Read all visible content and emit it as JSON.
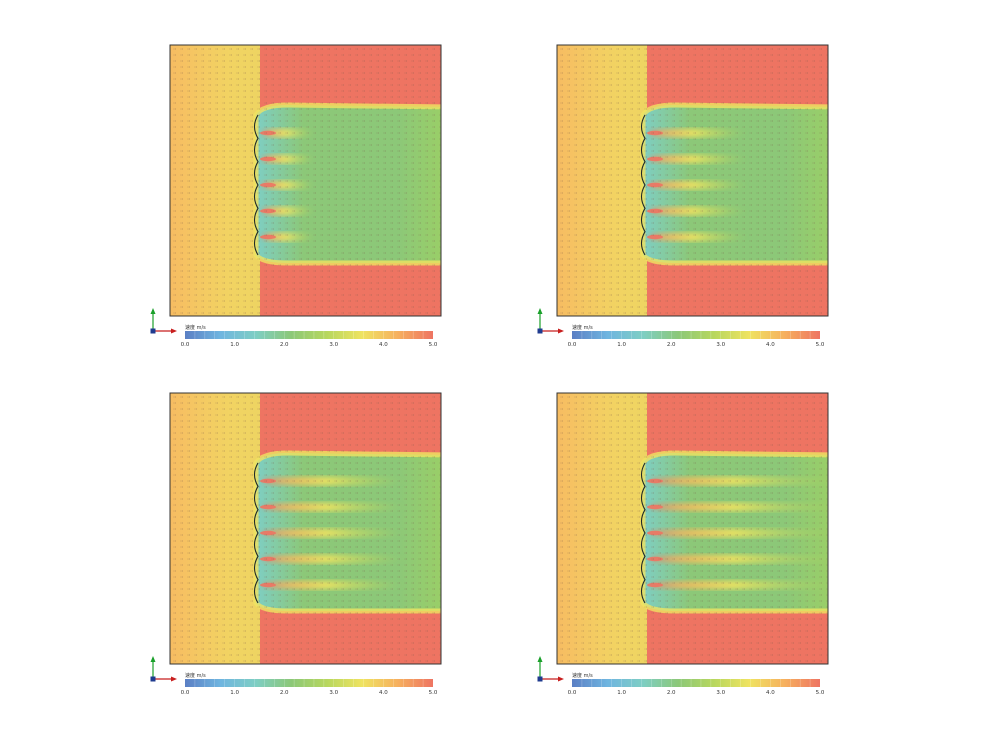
{
  "chart_data": [
    {
      "type": "heatmap",
      "title": "",
      "xlabel": "",
      "ylabel": "",
      "colorbar": {
        "title": "速度 m/s",
        "min": 0,
        "max": 5,
        "ticks": [
          "0.0",
          "1.0",
          "2.0",
          "3.0",
          "4.0",
          "5.0"
        ]
      },
      "gaps": 5
    },
    {
      "type": "heatmap",
      "title": "",
      "xlabel": "",
      "ylabel": "",
      "colorbar": {
        "title": "速度 m/s",
        "min": 0,
        "max": 5,
        "ticks": [
          "0.0",
          "1.0",
          "2.0",
          "3.0",
          "4.0",
          "5.0"
        ]
      },
      "gaps": 5
    },
    {
      "type": "heatmap",
      "title": "",
      "xlabel": "",
      "ylabel": "",
      "colorbar": {
        "title": "速度 m/s",
        "min": 0,
        "max": 5,
        "ticks": [
          "0.0",
          "1.0",
          "2.0",
          "3.0",
          "4.0",
          "5.0"
        ]
      },
      "gaps": 5
    },
    {
      "type": "heatmap",
      "title": "",
      "xlabel": "",
      "ylabel": "",
      "colorbar": {
        "title": "速度 m/s",
        "min": 0,
        "max": 5,
        "ticks": [
          "0.0",
          "1.0",
          "2.0",
          "3.0",
          "4.0",
          "5.0"
        ]
      },
      "gaps": 5
    }
  ],
  "colors": {
    "scale": [
      "#5b7fc4",
      "#6fb5e0",
      "#7ecec4",
      "#8cc878",
      "#b7d75e",
      "#efe361",
      "#f6b05e",
      "#ee7462"
    ],
    "frame": "#333333",
    "axis_x": "#c81e1e",
    "axis_y": "#1aa02a",
    "axis_origin": "#1f3b8f"
  }
}
